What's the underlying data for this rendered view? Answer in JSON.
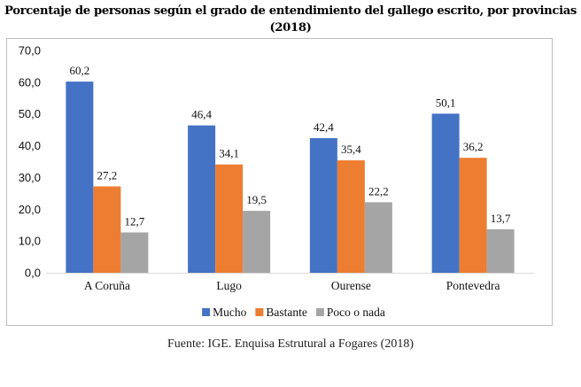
{
  "chart_data": {
    "type": "bar",
    "title": "Porcentaje de personas según el grado de entendimiento del gallego escrito, por provincias (2018)",
    "title_lines": [
      "Porcentaje de personas según el grado de entendimiento del gallego escrito, por provincias",
      "(2018)"
    ],
    "xlabel": "",
    "ylabel": "",
    "categories": [
      "A Coruña",
      "Lugo",
      "Ourense",
      "Pontevedra"
    ],
    "series": [
      {
        "name": "Mucho",
        "color": "#4472c4",
        "values": [
          60.2,
          46.4,
          42.4,
          50.1
        ],
        "labels": [
          "60,2",
          "46,4",
          "42,4",
          "50,1"
        ]
      },
      {
        "name": "Bastante",
        "color": "#ed7d31",
        "values": [
          27.2,
          34.1,
          35.4,
          36.2
        ],
        "labels": [
          "27,2",
          "34,1",
          "35,4",
          "36,2"
        ]
      },
      {
        "name": "Poco o nada",
        "color": "#a5a5a5",
        "values": [
          12.7,
          19.5,
          22.2,
          13.7
        ],
        "labels": [
          "12,7",
          "19,5",
          "22,2",
          "13,7"
        ]
      }
    ],
    "ylim": [
      0,
      70
    ],
    "yticks": [
      0,
      10,
      20,
      30,
      40,
      50,
      60,
      70
    ],
    "ytick_labels": [
      "0,0",
      "10,0",
      "20,0",
      "30,0",
      "40,0",
      "50,0",
      "60,0",
      "70,0"
    ],
    "grid": false,
    "legend_position": "bottom"
  },
  "source": "Fuente: IGE. Enquisa Estrutural a Fogares (2018)"
}
